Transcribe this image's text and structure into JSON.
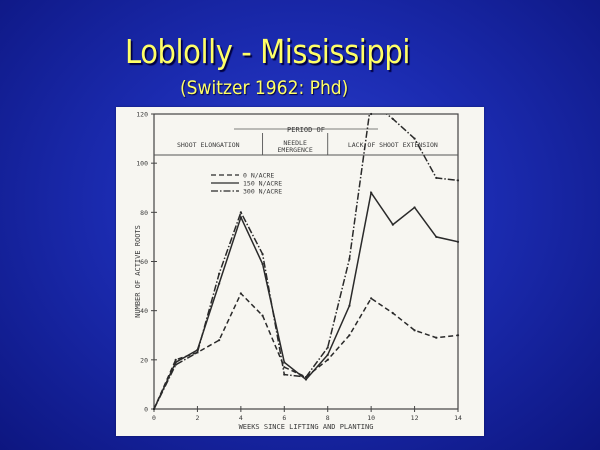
{
  "slide": {
    "title": "Loblolly - Mississippi",
    "subtitle": "(Switzer 1962: Phd)"
  },
  "chart_data": {
    "type": "line",
    "xlabel": "WEEKS SINCE LIFTING AND PLANTING",
    "ylabel": "NUMBER OF ACTIVE ROOTS",
    "x": [
      0,
      1,
      2,
      3,
      4,
      5,
      6,
      7,
      8,
      9,
      10,
      11,
      12,
      13,
      14
    ],
    "xticks": [
      0,
      2,
      4,
      6,
      8,
      10,
      12,
      14
    ],
    "xtick_labels": [
      "0",
      "2",
      "4",
      "6",
      "8",
      "10",
      "12",
      "14"
    ],
    "xlim": [
      0,
      14
    ],
    "yticks": [
      0,
      20,
      40,
      60,
      80,
      100,
      120
    ],
    "ytick_labels": [
      "0",
      "20",
      "40",
      "60",
      "80",
      "100",
      "120"
    ],
    "ylim": [
      0,
      120
    ],
    "period_header": "PERIOD OF",
    "periods": [
      {
        "label": "SHOOT ELONGATION",
        "x_start": 0,
        "x_end": 5
      },
      {
        "label": "NEEDLE EMERGENCE",
        "x_start": 5,
        "x_end": 8
      },
      {
        "label": "LACK OF SHOOT EXTENSION",
        "x_start": 8,
        "x_end": 14
      }
    ],
    "legend_position": "upper-left",
    "series": [
      {
        "name": "0 N/ACRE",
        "style": "dash",
        "values": [
          0,
          20,
          23,
          28,
          47,
          38,
          17,
          13,
          20,
          30,
          45,
          39,
          32,
          29,
          30
        ]
      },
      {
        "name": "150 N/ACRE",
        "style": "solid",
        "values": [
          0,
          19,
          24,
          51,
          78,
          59,
          19,
          12,
          22,
          42,
          88,
          75,
          82,
          70,
          68
        ]
      },
      {
        "name": "300 N/ACRE",
        "style": "dash-dot",
        "values": [
          0,
          18,
          23,
          55,
          80,
          63,
          14,
          13,
          25,
          61,
          125,
          118,
          110,
          94,
          93
        ]
      }
    ]
  }
}
